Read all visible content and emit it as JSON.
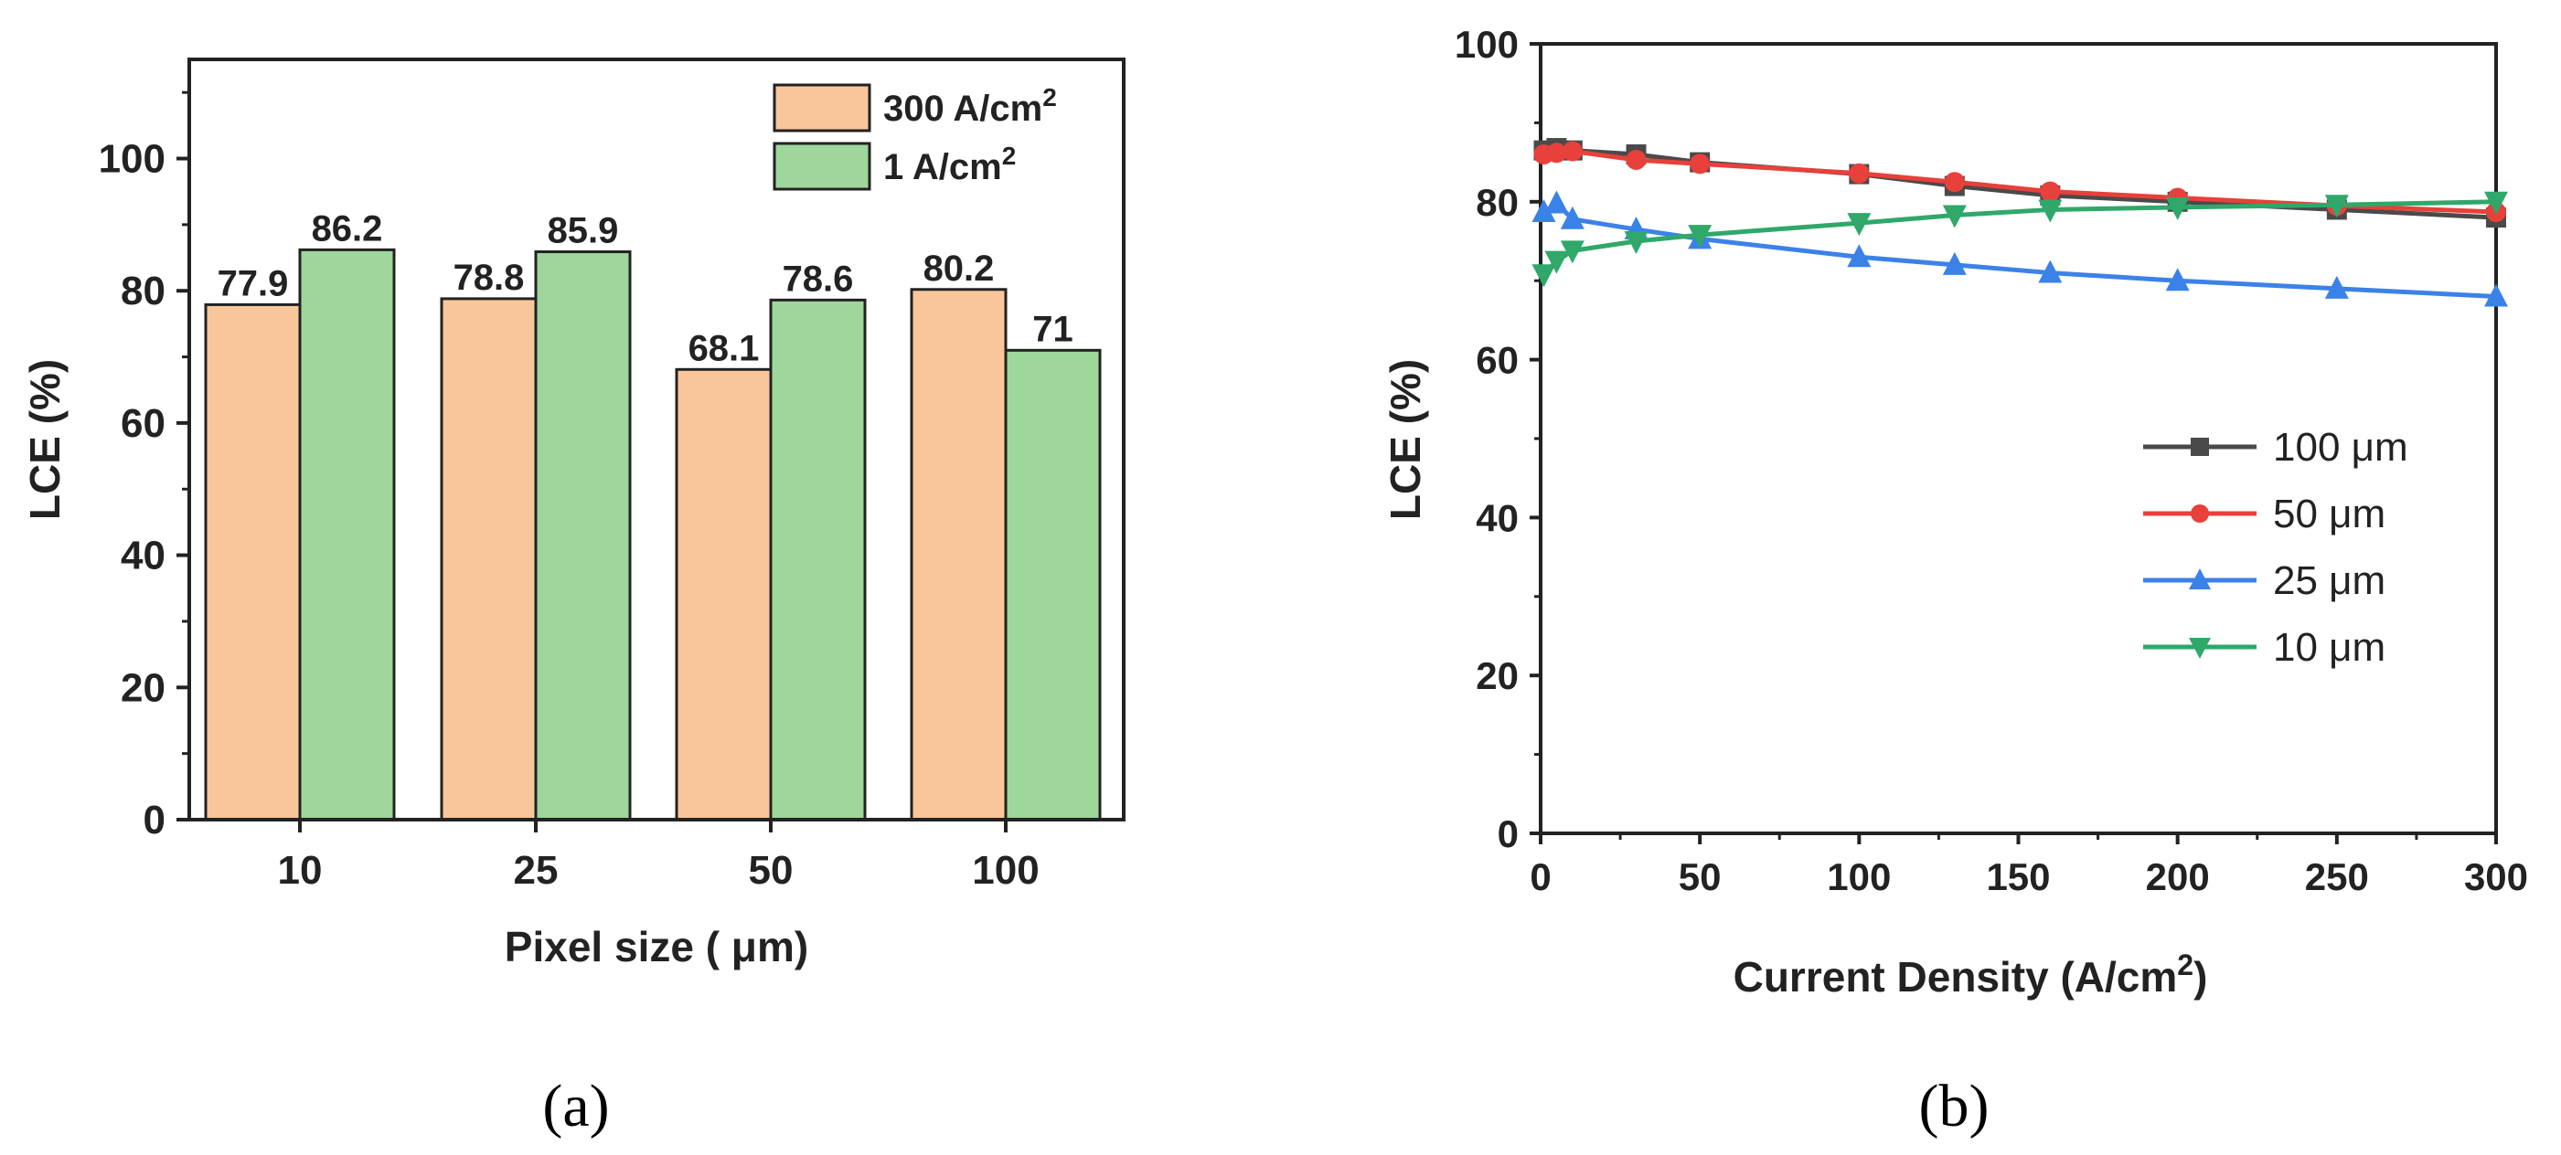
{
  "chart_data": [
    {
      "panel": "(a)",
      "type": "bar",
      "xlabel": "Pixel size ( μm)",
      "ylabel": "LCE (%)",
      "ylim": [
        0,
        115
      ],
      "yticks": [
        0,
        20,
        40,
        60,
        80,
        100
      ],
      "categories": [
        "10",
        "25",
        "50",
        "100"
      ],
      "series": [
        {
          "name": "300 A/cm",
          "superscript": "2",
          "color": "#F9C69B",
          "values": [
            77.9,
            78.8,
            68.1,
            80.2
          ],
          "labels": [
            "77.9",
            "78.8",
            "68.1",
            "80.2"
          ]
        },
        {
          "name": "1 A/cm",
          "superscript": "2",
          "color": "#9ED69B",
          "values": [
            86.2,
            85.9,
            78.6,
            71
          ],
          "labels": [
            "86.2",
            "85.9",
            "78.6",
            "71"
          ]
        }
      ],
      "legend": "top-right"
    },
    {
      "panel": "(b)",
      "type": "line",
      "xlabel": "Current Density (A/cm",
      "xlabel_superscript": "2",
      "xlabel_suffix": ")",
      "ylabel": "LCE (%)",
      "xlim": [
        0,
        300
      ],
      "ylim": [
        0,
        100
      ],
      "xticks": [
        0,
        50,
        100,
        150,
        200,
        250,
        300
      ],
      "yticks": [
        0,
        20,
        40,
        60,
        80,
        100
      ],
      "x": [
        1,
        5,
        10,
        30,
        50,
        100,
        130,
        160,
        200,
        250,
        300
      ],
      "series": [
        {
          "name": "100 μm",
          "color": "#4a4a4a",
          "marker": "square",
          "values": [
            86.5,
            86.8,
            86.5,
            86,
            85,
            83.5,
            82,
            80.8,
            80,
            79,
            78
          ]
        },
        {
          "name": "50 μm",
          "color": "#E8403A",
          "marker": "circle",
          "values": [
            86,
            86.2,
            86.4,
            85.3,
            84.8,
            83.6,
            82.5,
            81.3,
            80.5,
            79.5,
            78.7
          ]
        },
        {
          "name": "25 μm",
          "color": "#3B82E8",
          "marker": "triangle-up",
          "values": [
            78.7,
            79.8,
            77.8,
            76.5,
            75.3,
            73,
            72,
            71,
            70,
            69,
            68
          ]
        },
        {
          "name": "10 μm",
          "color": "#2FA86A",
          "marker": "triangle-down",
          "values": [
            70.8,
            72.5,
            73.8,
            75,
            75.8,
            77.3,
            78.3,
            79,
            79.3,
            79.6,
            80
          ]
        }
      ],
      "legend": "center-right"
    }
  ]
}
